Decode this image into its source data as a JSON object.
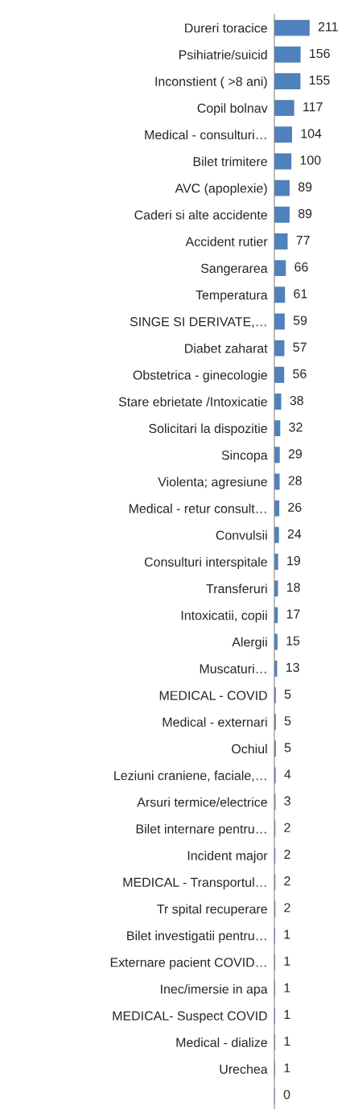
{
  "chart_data": {
    "type": "bar",
    "orientation": "horizontal",
    "tick_labels": "y",
    "data_labels": true,
    "grid": false,
    "legend": false,
    "categories": [
      "Dureri toracice",
      "Psihiatrie/suicid",
      "Inconstient ( >8 ani)",
      "Copil bolnav",
      "Medical - consulturi…",
      "Bilet trimitere",
      "AVC (apoplexie)",
      "Caderi si alte accidente",
      "Accident rutier",
      "Sangerarea",
      "Temperatura",
      "SINGE SI DERIVATE,…",
      "Diabet zaharat",
      "Obstetrica - ginecologie",
      "Stare ebrietate /Intoxicatie",
      "Solicitari la dispozitie",
      "Sincopa",
      "Violenta; agresiune",
      "Medical - retur consult…",
      "Convulsii",
      "Consulturi interspitale",
      "Transferuri",
      "Intoxicatii, copii",
      "Alergii",
      "Muscaturi…",
      "MEDICAL - COVID",
      "Medical - externari",
      "Ochiul",
      "Leziuni craniene, faciale,…",
      "Arsuri termice/electrice",
      "Bilet internare pentru…",
      "Incident major",
      "MEDICAL - Transportul…",
      "Tr spital recuperare",
      "Bilet investigatii pentru…",
      "Externare pacient COVID…",
      "Inec/imersie in apa",
      "MEDICAL- Suspect COVID",
      "Medical - dialize",
      "Urechea",
      null
    ],
    "values": [
      211,
      156,
      155,
      117,
      104,
      100,
      89,
      89,
      77,
      66,
      61,
      59,
      57,
      56,
      38,
      32,
      29,
      28,
      26,
      24,
      19,
      18,
      17,
      15,
      13,
      5,
      5,
      5,
      4,
      3,
      2,
      2,
      2,
      2,
      1,
      1,
      1,
      1,
      1,
      1,
      0
    ],
    "color": "#4f81bd"
  }
}
